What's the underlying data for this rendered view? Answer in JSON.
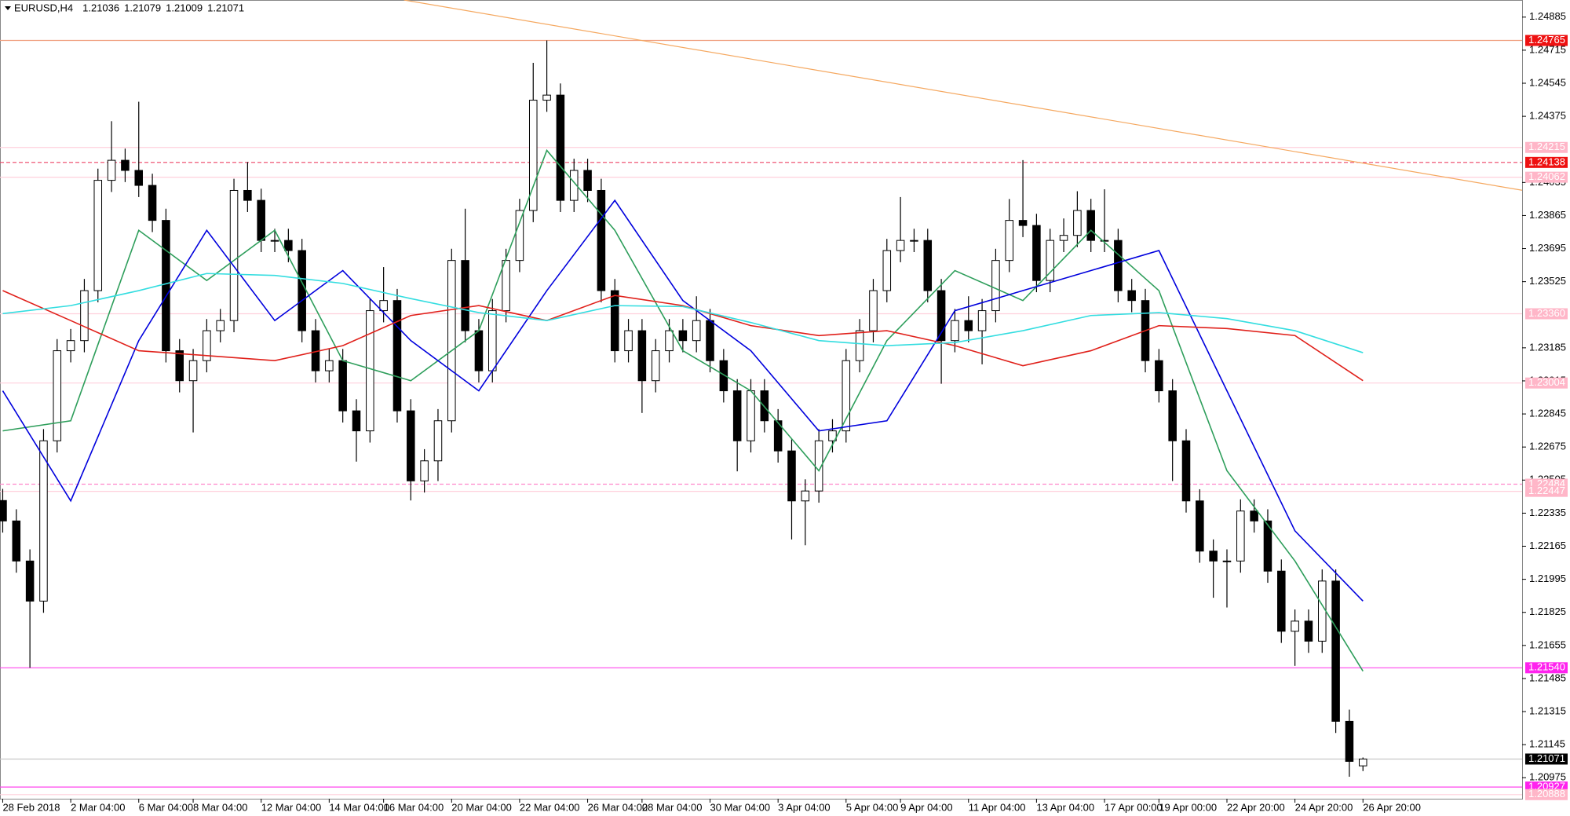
{
  "chart_data": {
    "type": "candlestick",
    "symbol": "EURUSD,H4",
    "up_color": "#ffffff",
    "down_color": "#000000",
    "ylim": [
      1.20867,
      1.24973
    ],
    "xlim": [
      -0.2,
      111.7
    ],
    "yticks": [
      1.24885,
      1.24715,
      1.24545,
      1.24375,
      1.24035,
      1.23865,
      1.23695,
      1.23525,
      1.23185,
      1.23015,
      1.22845,
      1.22675,
      1.22505,
      1.22335,
      1.22165,
      1.21995,
      1.21825,
      1.21655,
      1.21485,
      1.21315,
      1.21145,
      1.20975
    ],
    "xticks": [
      {
        "value": 0,
        "label": "28 Feb 2018"
      },
      {
        "value": 5,
        "label": "2 Mar 04:00"
      },
      {
        "value": 10,
        "label": "6 Mar 04:00"
      },
      {
        "value": 14,
        "label": "8 Mar 04:00"
      },
      {
        "value": 19,
        "label": "12 Mar 04:00"
      },
      {
        "value": 24,
        "label": "14 Mar 04:00"
      },
      {
        "value": 28,
        "label": "16 Mar 04:00"
      },
      {
        "value": 33,
        "label": "20 Mar 04:00"
      },
      {
        "value": 38,
        "label": "22 Mar 04:00"
      },
      {
        "value": 43,
        "label": "26 Mar 04:00"
      },
      {
        "value": 47,
        "label": "28 Mar 04:00"
      },
      {
        "value": 52,
        "label": "30 Mar 04:00"
      },
      {
        "value": 57,
        "label": "3 Apr 04:00"
      },
      {
        "value": 62,
        "label": "5 Apr 04:00"
      },
      {
        "value": 66,
        "label": "9 Apr 04:00"
      },
      {
        "value": 71,
        "label": "11 Apr 04:00"
      },
      {
        "value": 76,
        "label": "13 Apr 04:00"
      },
      {
        "value": 81,
        "label": "17 Apr 00:00"
      },
      {
        "value": 85,
        "label": "19 Apr 00:00"
      },
      {
        "value": 90,
        "label": "22 Apr 20:00"
      },
      {
        "value": 95,
        "label": "24 Apr 20:00"
      },
      {
        "value": 100,
        "label": "26 Apr 20:00"
      }
    ],
    "candles": [
      [
        1.224,
        1.2246,
        1.22235,
        1.22295
      ],
      [
        1.22295,
        1.22355,
        1.22029,
        1.22089
      ],
      [
        1.22089,
        1.22149,
        1.2154,
        1.21883
      ],
      [
        1.21883,
        1.22767,
        1.21823,
        1.22707
      ],
      [
        1.22707,
        1.2323,
        1.22647,
        1.2317
      ],
      [
        1.2317,
        1.23282,
        1.2311,
        1.23222
      ],
      [
        1.23222,
        1.23539,
        1.23162,
        1.23479
      ],
      [
        1.23479,
        1.24106,
        1.23419,
        1.24046
      ],
      [
        1.24046,
        1.2435,
        1.23986,
        1.24149
      ],
      [
        1.24149,
        1.24209,
        1.24037,
        1.24097
      ],
      [
        1.24097,
        1.2445,
        1.2396,
        1.2402
      ],
      [
        1.2402,
        1.2408,
        1.2378,
        1.2384
      ],
      [
        1.2384,
        1.239,
        1.2311,
        1.2317
      ],
      [
        1.2317,
        1.2323,
        1.22956,
        1.23016
      ],
      [
        1.23016,
        1.23179,
        1.2275,
        1.23119
      ],
      [
        1.23119,
        1.23333,
        1.23059,
        1.23273
      ],
      [
        1.23273,
        1.23385,
        1.23213,
        1.23325
      ],
      [
        1.23325,
        1.24054,
        1.23265,
        1.23994
      ],
      [
        1.23994,
        1.2414,
        1.23883,
        1.23943
      ],
      [
        1.23943,
        1.24003,
        1.23677,
        1.23737
      ],
      [
        1.23737,
        1.23797,
        1.23677,
        1.23737
      ],
      [
        1.23737,
        1.23797,
        1.23625,
        1.23685
      ],
      [
        1.23685,
        1.23745,
        1.23213,
        1.23273
      ],
      [
        1.23273,
        1.23333,
        1.23007,
        1.23067
      ],
      [
        1.23067,
        1.23179,
        1.23007,
        1.23119
      ],
      [
        1.23119,
        1.23179,
        1.22801,
        1.22861
      ],
      [
        1.22861,
        1.22921,
        1.226,
        1.22758
      ],
      [
        1.22758,
        1.23436,
        1.22698,
        1.23376
      ],
      [
        1.23376,
        1.236,
        1.23316,
        1.23428
      ],
      [
        1.23428,
        1.23488,
        1.22801,
        1.22861
      ],
      [
        1.22861,
        1.22921,
        1.224,
        1.22501
      ],
      [
        1.22501,
        1.22664,
        1.22441,
        1.22604
      ],
      [
        1.22604,
        1.2287,
        1.225,
        1.2281
      ],
      [
        1.2281,
        1.23694,
        1.2275,
        1.23634
      ],
      [
        1.23634,
        1.239,
        1.23213,
        1.23273
      ],
      [
        1.23273,
        1.23333,
        1.23007,
        1.23067
      ],
      [
        1.23067,
        1.23436,
        1.23007,
        1.23376
      ],
      [
        1.23376,
        1.23694,
        1.23316,
        1.23634
      ],
      [
        1.23634,
        1.23951,
        1.23574,
        1.23891
      ],
      [
        1.23891,
        1.2465,
        1.23831,
        1.24458
      ],
      [
        1.24458,
        1.24765,
        1.24398,
        1.24484
      ],
      [
        1.24484,
        1.24544,
        1.23883,
        1.23943
      ],
      [
        1.23943,
        1.24157,
        1.23883,
        1.24097
      ],
      [
        1.24097,
        1.24157,
        1.23934,
        1.23994
      ],
      [
        1.23994,
        1.24054,
        1.23419,
        1.23479
      ],
      [
        1.23479,
        1.23539,
        1.2311,
        1.2317
      ],
      [
        1.2317,
        1.23333,
        1.2311,
        1.23273
      ],
      [
        1.23273,
        1.23333,
        1.2285,
        1.23016
      ],
      [
        1.23016,
        1.2323,
        1.22956,
        1.2317
      ],
      [
        1.2317,
        1.23333,
        1.2311,
        1.23273
      ],
      [
        1.23273,
        1.23333,
        1.23162,
        1.23222
      ],
      [
        1.23222,
        1.2345,
        1.23162,
        1.23325
      ],
      [
        1.23325,
        1.23385,
        1.23059,
        1.23119
      ],
      [
        1.23119,
        1.23179,
        1.22904,
        1.22964
      ],
      [
        1.22964,
        1.23024,
        1.2255,
        1.22707
      ],
      [
        1.22707,
        1.23024,
        1.22647,
        1.22964
      ],
      [
        1.22964,
        1.23024,
        1.2275,
        1.2281
      ],
      [
        1.2281,
        1.2287,
        1.22595,
        1.22655
      ],
      [
        1.22655,
        1.22715,
        1.222,
        1.22398
      ],
      [
        1.22398,
        1.22509,
        1.2217,
        1.22449
      ],
      [
        1.22449,
        1.22767,
        1.22389,
        1.22707
      ],
      [
        1.22707,
        1.22818,
        1.22647,
        1.22758
      ],
      [
        1.22758,
        1.23179,
        1.22698,
        1.23119
      ],
      [
        1.23119,
        1.23333,
        1.23059,
        1.23273
      ],
      [
        1.23273,
        1.23539,
        1.23213,
        1.23479
      ],
      [
        1.23479,
        1.23745,
        1.23419,
        1.23685
      ],
      [
        1.23685,
        1.2396,
        1.23625,
        1.23737
      ],
      [
        1.23737,
        1.23797,
        1.23677,
        1.23737
      ],
      [
        1.23737,
        1.23797,
        1.23419,
        1.23479
      ],
      [
        1.23479,
        1.23539,
        1.23,
        1.23222
      ],
      [
        1.23222,
        1.23385,
        1.23162,
        1.23325
      ],
      [
        1.23325,
        1.2345,
        1.23213,
        1.23273
      ],
      [
        1.23273,
        1.23436,
        1.231,
        1.23376
      ],
      [
        1.23376,
        1.23694,
        1.23316,
        1.23634
      ],
      [
        1.23634,
        1.2395,
        1.23574,
        1.2384
      ],
      [
        1.2384,
        1.2415,
        1.23754,
        1.23814
      ],
      [
        1.23814,
        1.23874,
        1.23471,
        1.23531
      ],
      [
        1.23531,
        1.23797,
        1.23471,
        1.23737
      ],
      [
        1.23737,
        1.2385,
        1.23677,
        1.23763
      ],
      [
        1.23763,
        1.2399,
        1.23703,
        1.23891
      ],
      [
        1.23891,
        1.23951,
        1.23677,
        1.23737
      ],
      [
        1.23737,
        1.24,
        1.23677,
        1.23737
      ],
      [
        1.23737,
        1.23797,
        1.23419,
        1.23479
      ],
      [
        1.23479,
        1.23539,
        1.23368,
        1.23428
      ],
      [
        1.23428,
        1.23488,
        1.23059,
        1.23119
      ],
      [
        1.23119,
        1.23179,
        1.22904,
        1.22964
      ],
      [
        1.22964,
        1.23024,
        1.225,
        1.22707
      ],
      [
        1.22707,
        1.22767,
        1.22338,
        1.22398
      ],
      [
        1.22398,
        1.22458,
        1.2208,
        1.2214
      ],
      [
        1.2214,
        1.222,
        1.219,
        1.22089
      ],
      [
        1.22089,
        1.22149,
        1.2185,
        1.22089
      ],
      [
        1.22089,
        1.22406,
        1.22029,
        1.22346
      ],
      [
        1.22346,
        1.22406,
        1.22235,
        1.22295
      ],
      [
        1.22295,
        1.22355,
        1.21977,
        1.22037
      ],
      [
        1.22037,
        1.22097,
        1.21668,
        1.21728
      ],
      [
        1.21728,
        1.2184,
        1.2155,
        1.2178
      ],
      [
        1.2178,
        1.2184,
        1.21617,
        1.21677
      ],
      [
        1.21677,
        1.22046,
        1.21617,
        1.21986
      ],
      [
        1.21986,
        1.22046,
        1.21205,
        1.21265
      ],
      [
        1.21265,
        1.21325,
        1.2098,
        1.21059
      ],
      [
        1.21036,
        1.21079,
        1.21009,
        1.21071
      ]
    ],
    "ma_x": [
      0,
      5,
      10,
      15,
      20,
      25,
      30,
      35,
      40,
      45,
      50,
      55,
      60,
      65,
      70,
      75,
      80,
      85,
      90,
      95,
      100
    ],
    "series": [
      {
        "color": "#2e9e5b",
        "values": [
          1.22758,
          1.2281,
          1.23789,
          1.23531,
          1.23789,
          1.23119,
          1.23016,
          1.23273,
          1.242,
          1.23789,
          1.2317,
          1.22964,
          1.22553,
          1.23222,
          1.23582,
          1.23428,
          1.23789,
          1.23479,
          1.22553,
          1.22089,
          1.21523
        ]
      },
      {
        "color": "#0000dd",
        "values": [
          1.22964,
          1.22398,
          1.23222,
          1.23789,
          1.23325,
          1.23582,
          1.23222,
          1.22964,
          1.23479,
          1.23943,
          1.23428,
          1.2317,
          1.22758,
          1.2281,
          1.23376,
          1.23479,
          1.23582,
          1.23685,
          1.22964,
          1.22244,
          1.21883
        ]
      },
      {
        "color": "#e0201a",
        "values": [
          1.23479,
          1.23325,
          1.2317,
          1.23145,
          1.23119,
          1.23196,
          1.23351,
          1.23402,
          1.23325,
          1.23454,
          1.23402,
          1.23299,
          1.23248,
          1.23273,
          1.23196,
          1.23093,
          1.2317,
          1.23299,
          1.23284,
          1.23248,
          1.23016
        ]
      },
      {
        "color": "#33dde0",
        "values": [
          1.23361,
          1.23402,
          1.23479,
          1.23567,
          1.23557,
          1.23516,
          1.23438,
          1.23366,
          1.23325,
          1.23402,
          1.23397,
          1.23315,
          1.23222,
          1.23196,
          1.23212,
          1.23273,
          1.23351,
          1.23366,
          1.23335,
          1.23273,
          1.2316
        ]
      }
    ],
    "trendline": {
      "color": "#f5a860",
      "x": [
        29.5,
        111.7
      ],
      "values": [
        1.24973,
        1.23995
      ]
    },
    "price_levels": [
      {
        "value": 1.24765,
        "color": "#f0a080",
        "label_bg": "#ee1111",
        "dashed": false
      },
      {
        "value": 1.24215,
        "color": "#ffd0dc",
        "label_bg": "#ffb6c8",
        "dashed": false
      },
      {
        "value": 1.24138,
        "color": "#ee4466",
        "label_bg": "#ee1111",
        "dashed": true
      },
      {
        "value": 1.24062,
        "color": "#ffd0dc",
        "label_bg": "#ffb6c8",
        "dashed": false
      },
      {
        "value": 1.2336,
        "label": "1.23360",
        "color": "#ffd0dc",
        "label_bg": "#ffb6c8",
        "dashed": false
      },
      {
        "value": 1.23004,
        "color": "#ffd0dc",
        "label_bg": "#ffb6c8",
        "dashed": false
      },
      {
        "value": 1.22484,
        "color": "#ff88cc",
        "label_bg": "#ffb6c8",
        "dashed": true
      },
      {
        "value": 1.22447,
        "color": "#ffd0dc",
        "label_bg": "#ffb6c8",
        "dashed": false
      },
      {
        "value": 1.2154,
        "label": "1.21540",
        "color": "#ff44ee",
        "label_bg": "#ff22ee",
        "dashed": false
      },
      {
        "value": 1.21071,
        "color": "#c8c8c8",
        "label_bg": "#000000",
        "dashed": false
      },
      {
        "value": 1.20927,
        "color": "#ff44ee",
        "label_bg": "#ff22ee",
        "dashed": false
      },
      {
        "value": 1.20888,
        "color": "#ffd0dc",
        "label_bg": "#ffb6c8",
        "dashed": false
      }
    ]
  }
}
